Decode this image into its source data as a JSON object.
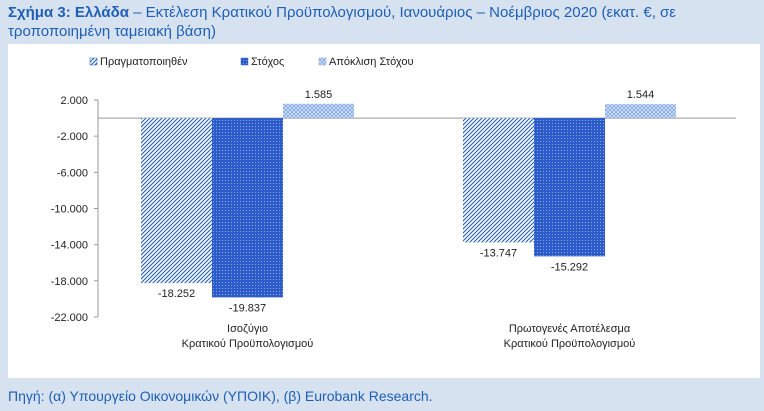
{
  "header": {
    "figure_label": "Σχήμα 3: Ελλάδα",
    "title_rest": " – Εκτέλεση Κρατικού Προϋπολογισμού, Ιανουάριος – Νοέμβριος 2020 (εκατ. €, σε τροποποιημένη ταμειακή βάση)"
  },
  "footer": {
    "source": "Πηγή: (α) Υπουργείο Οικονομικών (ΥΠΟΙΚ), (β) Eurobank Research."
  },
  "chart_data": {
    "type": "bar",
    "categories": [
      [
        "Ισοζύγιο",
        "Κρατικού Προϋπολογισμού"
      ],
      [
        "Πρωτογενές Αποτέλεσμα",
        "Κρατικού Προϋπολογισμού"
      ]
    ],
    "series": [
      {
        "name": "Πραγματοποιηθέν",
        "values": [
          -18252,
          -13747
        ],
        "labels": [
          "-18.252",
          "-13.747"
        ],
        "color": "#1f5fb6",
        "pattern": "dense-diagonal"
      },
      {
        "name": "Στόχος",
        "values": [
          -19837,
          -15292
        ],
        "labels": [
          "-19.837",
          "-15.292"
        ],
        "color": "#3f6ed0",
        "pattern": "dotted"
      },
      {
        "name": "Απόκλιση Στόχου",
        "values": [
          1585,
          1544
        ],
        "labels": [
          "1.585",
          "1.544"
        ],
        "color": "#8fb4e6",
        "pattern": "light-grid"
      }
    ],
    "yticks": [
      2000,
      -2000,
      -6000,
      -10000,
      -14000,
      -18000,
      -22000
    ],
    "ytick_labels": [
      "2.000",
      "-2.000",
      "-6.000",
      "-10.000",
      "-14.000",
      "-18.000",
      "-22.000"
    ],
    "ylim": [
      -22000,
      2000
    ],
    "legend_position": "top-left",
    "grid": false
  }
}
